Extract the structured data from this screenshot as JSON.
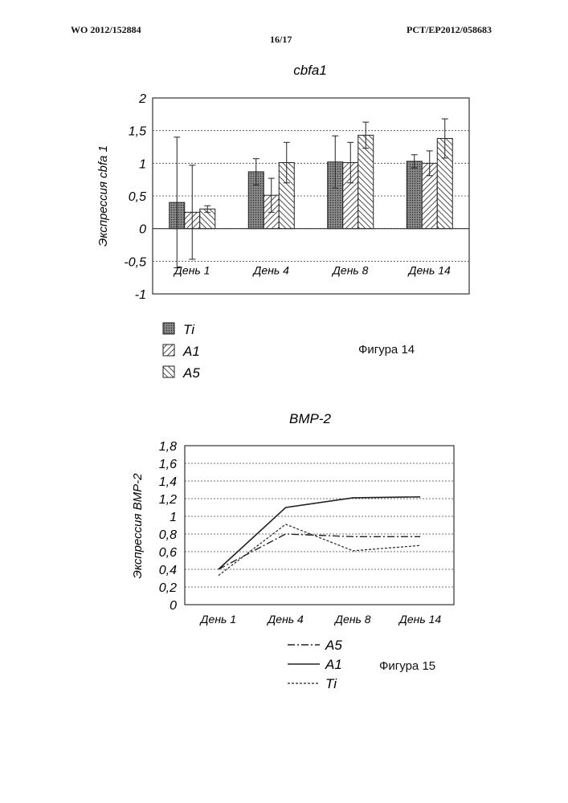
{
  "header": {
    "left": "WO 2012/152884",
    "page": "16/17",
    "right": "PCT/EP2012/058683"
  },
  "figure14": {
    "caption": "Фигура 14"
  },
  "figure15": {
    "caption": "Фигура 15"
  },
  "chart_data": [
    {
      "type": "bar",
      "title": "cbfa1",
      "xlabel": "",
      "ylabel": "Экспрессия cbfa 1",
      "categories": [
        "День 1",
        "День 4",
        "День 8",
        "День 14"
      ],
      "ylim": [
        -1,
        2
      ],
      "yticks": [
        -1,
        -0.5,
        0,
        0.5,
        1,
        1.5,
        2
      ],
      "ytick_labels": [
        "-1",
        "-0,5",
        "0",
        "0,5",
        "1",
        "1,5",
        "2"
      ],
      "grid": true,
      "legend_position": "bottom-left",
      "series": [
        {
          "name": "Ti",
          "values": [
            0.4,
            0.87,
            1.02,
            1.03
          ],
          "errors": [
            1.0,
            0.2,
            0.4,
            0.1
          ],
          "pattern": "dots"
        },
        {
          "name": "A1",
          "values": [
            0.25,
            0.51,
            1.01,
            1.0
          ],
          "errors": [
            0.72,
            0.26,
            0.31,
            0.19
          ],
          "pattern": "hatch-right"
        },
        {
          "name": "A5",
          "values": [
            0.3,
            1.01,
            1.43,
            1.38
          ],
          "errors": [
            0.05,
            0.31,
            0.2,
            0.3
          ],
          "pattern": "hatch-left"
        }
      ]
    },
    {
      "type": "line",
      "title": "BMP-2",
      "xlabel": "",
      "ylabel": "Экспрессия BMP-2",
      "categories": [
        "День 1",
        "День 4",
        "День 8",
        "День 14"
      ],
      "ylim": [
        0,
        1.8
      ],
      "yticks": [
        0,
        0.2,
        0.4,
        0.6,
        0.8,
        1,
        1.2,
        1.4,
        1.6,
        1.8
      ],
      "ytick_labels": [
        "0",
        "0,2",
        "0,4",
        "0,6",
        "0,8",
        "1",
        "1,2",
        "1,4",
        "1,6",
        "1,8"
      ],
      "grid": true,
      "legend_position": "bottom-left",
      "series": [
        {
          "name": "A5",
          "values": [
            0.4,
            0.8,
            0.77,
            0.77
          ],
          "style": "dashdot"
        },
        {
          "name": "A1",
          "values": [
            0.4,
            1.1,
            1.21,
            1.22
          ],
          "style": "solid"
        },
        {
          "name": "Ti",
          "values": [
            0.33,
            0.91,
            0.61,
            0.67
          ],
          "style": "dashed"
        }
      ]
    }
  ]
}
